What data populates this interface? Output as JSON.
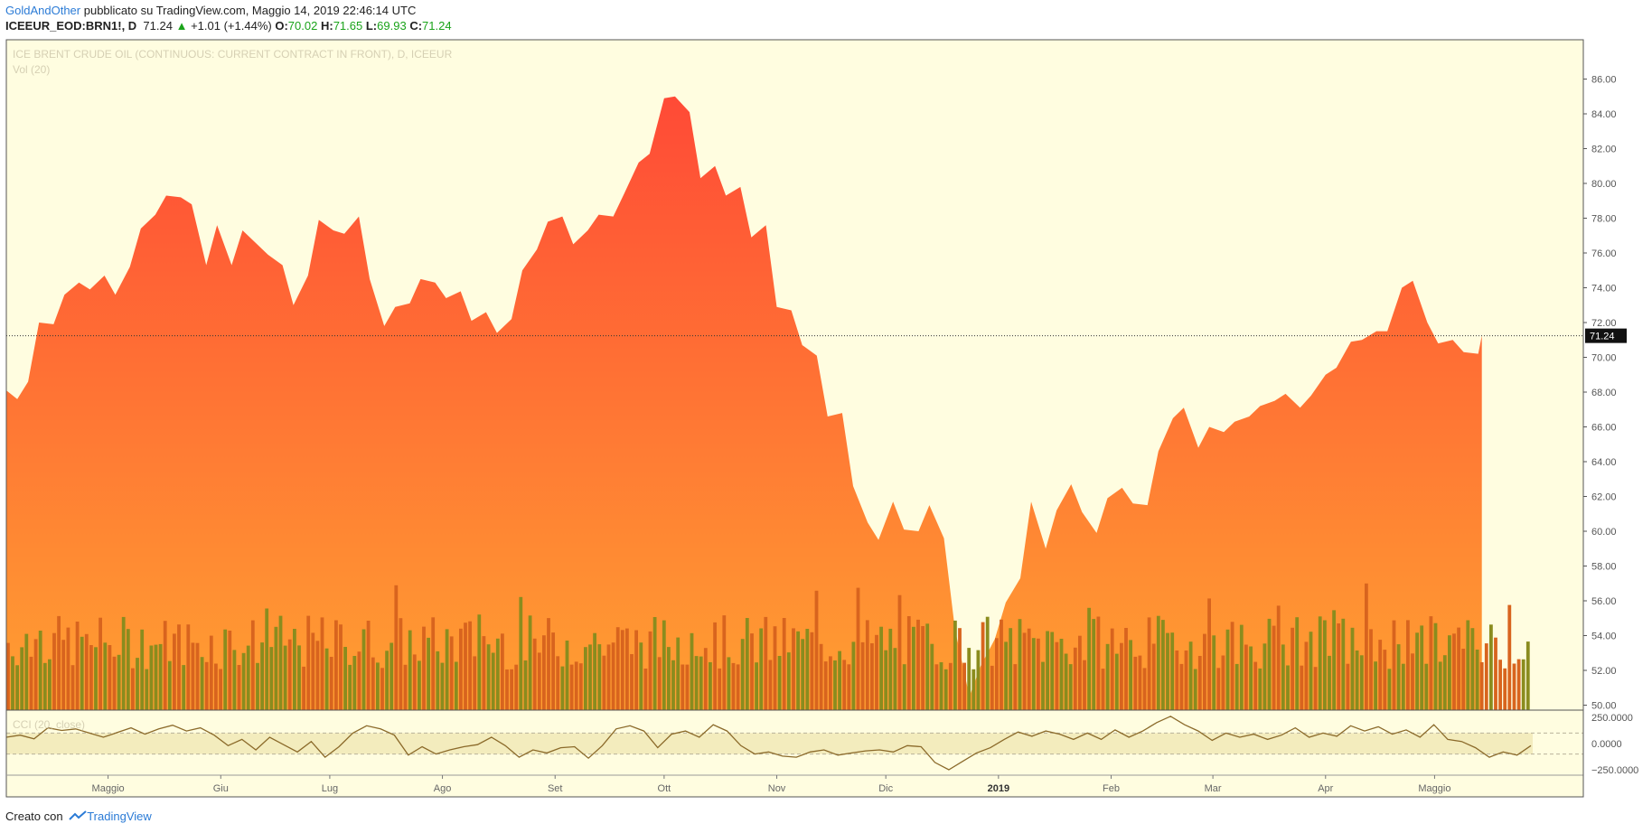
{
  "header": {
    "author": "GoldAndOther",
    "published": "pubblicato su TradingView.com, Maggio 14, 2019 22:46:14 UTC",
    "symbol": "ICEEUR_EOD:BRN1!, D",
    "last": "71.24",
    "change": "+1.01 (+1.44%)",
    "o_label": "O:",
    "o": "70.02",
    "h_label": "H:",
    "h": "71.65",
    "l_label": "L:",
    "l": "69.93",
    "c_label": "C:",
    "c": "71.24",
    "up_arrow": "▲"
  },
  "footer": {
    "created_with": "Creato con",
    "brand": "TradingView"
  },
  "colors": {
    "background": "#fffde0",
    "area_top": "#ff4a36",
    "area_bottom": "#ffa032",
    "vol_up": "#8a8c1e",
    "vol_down": "#d8641e",
    "cci_line": "#8b6a2a",
    "cci_band": "#f3ecbd",
    "last_label_bg": "#111111"
  },
  "chart_data": {
    "type": "area",
    "title": "ICE BRENT CRUDE OIL (CONTINUOUS: CURRENT CONTRACT IN FRONT), D, ICEEUR",
    "indicator_volume": "Vol (20)",
    "indicator_cci": "CCI (20, close)",
    "ylim": [
      48.5,
      87
    ],
    "y_ticks": [
      "86.00",
      "84.00",
      "82.00",
      "80.00",
      "78.00",
      "76.00",
      "74.00",
      "72.00",
      "70.00",
      "68.00",
      "66.00",
      "64.00",
      "62.00",
      "60.00",
      "58.00",
      "56.00",
      "54.00",
      "52.00",
      "50.00"
    ],
    "last_value": "71.24",
    "cci_ticks": [
      "250.0000",
      "0.0000",
      "−250.0000"
    ],
    "x_labels": [
      "Maggio",
      "Giu",
      "Lug",
      "Ago",
      "Set",
      "Ott",
      "Nov",
      "Dic",
      "2019",
      "Feb",
      "Mar",
      "Apr",
      "Maggio"
    ],
    "x_label_dates": [
      "2018-05-01",
      "2018-06-01",
      "2018-07-01",
      "2018-08-01",
      "2018-09-01",
      "2018-10-01",
      "2018-11-01",
      "2018-12-01",
      "2019-01-01",
      "2019-02-01",
      "2019-03-01",
      "2019-04-01",
      "2019-05-01"
    ],
    "x_range": [
      "2018-04-03",
      "2019-05-28"
    ],
    "close_series": [
      [
        "2018-04-03",
        68.1
      ],
      [
        "2018-04-06",
        67.6
      ],
      [
        "2018-04-09",
        68.6
      ],
      [
        "2018-04-12",
        72.0
      ],
      [
        "2018-04-16",
        71.9
      ],
      [
        "2018-04-19",
        73.6
      ],
      [
        "2018-04-23",
        74.3
      ],
      [
        "2018-04-26",
        73.9
      ],
      [
        "2018-04-30",
        74.7
      ],
      [
        "2018-05-03",
        73.6
      ],
      [
        "2018-05-07",
        75.2
      ],
      [
        "2018-05-10",
        77.4
      ],
      [
        "2018-05-14",
        78.2
      ],
      [
        "2018-05-17",
        79.3
      ],
      [
        "2018-05-21",
        79.2
      ],
      [
        "2018-05-24",
        78.8
      ],
      [
        "2018-05-28",
        75.3
      ],
      [
        "2018-05-31",
        77.6
      ],
      [
        "2018-06-04",
        75.3
      ],
      [
        "2018-06-07",
        77.3
      ],
      [
        "2018-06-11",
        76.5
      ],
      [
        "2018-06-14",
        75.9
      ],
      [
        "2018-06-18",
        75.3
      ],
      [
        "2018-06-21",
        73.0
      ],
      [
        "2018-06-25",
        74.7
      ],
      [
        "2018-06-28",
        77.9
      ],
      [
        "2018-07-02",
        77.3
      ],
      [
        "2018-07-05",
        77.1
      ],
      [
        "2018-07-09",
        78.1
      ],
      [
        "2018-07-12",
        74.5
      ],
      [
        "2018-07-16",
        71.8
      ],
      [
        "2018-07-19",
        72.9
      ],
      [
        "2018-07-23",
        73.1
      ],
      [
        "2018-07-26",
        74.5
      ],
      [
        "2018-07-30",
        74.3
      ],
      [
        "2018-08-02",
        73.4
      ],
      [
        "2018-08-06",
        73.8
      ],
      [
        "2018-08-09",
        72.1
      ],
      [
        "2018-08-13",
        72.6
      ],
      [
        "2018-08-16",
        71.4
      ],
      [
        "2018-08-20",
        72.2
      ],
      [
        "2018-08-23",
        75.0
      ],
      [
        "2018-08-27",
        76.2
      ],
      [
        "2018-08-30",
        77.8
      ],
      [
        "2018-09-03",
        78.1
      ],
      [
        "2018-09-06",
        76.5
      ],
      [
        "2018-09-10",
        77.3
      ],
      [
        "2018-09-13",
        78.2
      ],
      [
        "2018-09-17",
        78.1
      ],
      [
        "2018-09-20",
        79.4
      ],
      [
        "2018-09-24",
        81.2
      ],
      [
        "2018-09-27",
        81.7
      ],
      [
        "2018-10-01",
        84.9
      ],
      [
        "2018-10-04",
        85.0
      ],
      [
        "2018-10-08",
        84.1
      ],
      [
        "2018-10-11",
        80.3
      ],
      [
        "2018-10-15",
        81.0
      ],
      [
        "2018-10-18",
        79.3
      ],
      [
        "2018-10-22",
        79.8
      ],
      [
        "2018-10-25",
        76.9
      ],
      [
        "2018-10-29",
        77.6
      ],
      [
        "2018-11-01",
        72.9
      ],
      [
        "2018-11-05",
        72.7
      ],
      [
        "2018-11-08",
        70.7
      ],
      [
        "2018-11-12",
        70.1
      ],
      [
        "2018-11-15",
        66.6
      ],
      [
        "2018-11-19",
        66.8
      ],
      [
        "2018-11-22",
        62.6
      ],
      [
        "2018-11-26",
        60.5
      ],
      [
        "2018-11-29",
        59.5
      ],
      [
        "2018-12-03",
        61.7
      ],
      [
        "2018-12-06",
        60.1
      ],
      [
        "2018-12-10",
        60.0
      ],
      [
        "2018-12-13",
        61.5
      ],
      [
        "2018-12-17",
        59.6
      ],
      [
        "2018-12-20",
        54.4
      ],
      [
        "2018-12-24",
        50.5
      ],
      [
        "2018-12-27",
        52.2
      ],
      [
        "2018-12-31",
        53.8
      ],
      [
        "2019-01-03",
        55.9
      ],
      [
        "2019-01-07",
        57.3
      ],
      [
        "2019-01-10",
        61.7
      ],
      [
        "2019-01-14",
        59.0
      ],
      [
        "2019-01-17",
        61.2
      ],
      [
        "2019-01-21",
        62.7
      ],
      [
        "2019-01-24",
        61.1
      ],
      [
        "2019-01-28",
        59.9
      ],
      [
        "2019-01-31",
        61.9
      ],
      [
        "2019-02-04",
        62.5
      ],
      [
        "2019-02-07",
        61.6
      ],
      [
        "2019-02-11",
        61.5
      ],
      [
        "2019-02-14",
        64.6
      ],
      [
        "2019-02-18",
        66.5
      ],
      [
        "2019-02-21",
        67.1
      ],
      [
        "2019-02-25",
        64.8
      ],
      [
        "2019-02-28",
        66.0
      ],
      [
        "2019-03-04",
        65.7
      ],
      [
        "2019-03-07",
        66.3
      ],
      [
        "2019-03-11",
        66.6
      ],
      [
        "2019-03-14",
        67.2
      ],
      [
        "2019-03-18",
        67.5
      ],
      [
        "2019-03-21",
        67.9
      ],
      [
        "2019-03-25",
        67.1
      ],
      [
        "2019-03-28",
        67.8
      ],
      [
        "2019-04-01",
        69.0
      ],
      [
        "2019-04-04",
        69.4
      ],
      [
        "2019-04-08",
        70.9
      ],
      [
        "2019-04-11",
        71.0
      ],
      [
        "2019-04-15",
        71.5
      ],
      [
        "2019-04-18",
        71.5
      ],
      [
        "2019-04-22",
        74.0
      ],
      [
        "2019-04-25",
        74.4
      ],
      [
        "2019-04-29",
        72.0
      ],
      [
        "2019-05-02",
        70.8
      ],
      [
        "2019-05-06",
        71.0
      ],
      [
        "2019-05-09",
        70.3
      ],
      [
        "2019-05-13",
        70.2
      ],
      [
        "2019-05-14",
        71.24
      ]
    ],
    "cci_series": [
      [
        0,
        60
      ],
      [
        4,
        80
      ],
      [
        8,
        45
      ],
      [
        12,
        150
      ],
      [
        16,
        125
      ],
      [
        20,
        140
      ],
      [
        24,
        100
      ],
      [
        28,
        60
      ],
      [
        32,
        105
      ],
      [
        36,
        150
      ],
      [
        40,
        90
      ],
      [
        44,
        140
      ],
      [
        48,
        175
      ],
      [
        52,
        120
      ],
      [
        56,
        150
      ],
      [
        60,
        80
      ],
      [
        64,
        -20
      ],
      [
        68,
        40
      ],
      [
        72,
        -60
      ],
      [
        76,
        60
      ],
      [
        80,
        -10
      ],
      [
        84,
        -80
      ],
      [
        88,
        20
      ],
      [
        92,
        -130
      ],
      [
        96,
        -30
      ],
      [
        100,
        100
      ],
      [
        104,
        170
      ],
      [
        108,
        140
      ],
      [
        112,
        80
      ],
      [
        116,
        -110
      ],
      [
        120,
        -30
      ],
      [
        124,
        -100
      ],
      [
        128,
        -60
      ],
      [
        132,
        -30
      ],
      [
        136,
        -10
      ],
      [
        140,
        60
      ],
      [
        144,
        -20
      ],
      [
        148,
        -130
      ],
      [
        152,
        -60
      ],
      [
        156,
        -90
      ],
      [
        160,
        -40
      ],
      [
        164,
        -30
      ],
      [
        168,
        -140
      ],
      [
        172,
        -20
      ],
      [
        176,
        140
      ],
      [
        180,
        170
      ],
      [
        184,
        120
      ],
      [
        188,
        -40
      ],
      [
        192,
        90
      ],
      [
        196,
        120
      ],
      [
        200,
        60
      ],
      [
        204,
        180
      ],
      [
        208,
        120
      ],
      [
        212,
        -20
      ],
      [
        216,
        -100
      ],
      [
        220,
        -80
      ],
      [
        224,
        -120
      ],
      [
        228,
        -130
      ],
      [
        232,
        -80
      ],
      [
        236,
        -60
      ],
      [
        240,
        -110
      ],
      [
        244,
        -90
      ],
      [
        248,
        -70
      ],
      [
        252,
        -60
      ],
      [
        256,
        -80
      ],
      [
        260,
        -20
      ],
      [
        264,
        -30
      ],
      [
        268,
        -180
      ],
      [
        272,
        -250
      ],
      [
        276,
        -170
      ],
      [
        280,
        -90
      ],
      [
        284,
        -40
      ],
      [
        288,
        40
      ],
      [
        292,
        110
      ],
      [
        296,
        70
      ],
      [
        300,
        120
      ],
      [
        304,
        90
      ],
      [
        308,
        40
      ],
      [
        312,
        100
      ],
      [
        316,
        40
      ],
      [
        320,
        130
      ],
      [
        324,
        60
      ],
      [
        328,
        120
      ],
      [
        332,
        200
      ],
      [
        336,
        260
      ],
      [
        340,
        180
      ],
      [
        344,
        120
      ],
      [
        348,
        30
      ],
      [
        352,
        100
      ],
      [
        356,
        60
      ],
      [
        360,
        90
      ],
      [
        364,
        40
      ],
      [
        368,
        80
      ],
      [
        372,
        150
      ],
      [
        376,
        60
      ],
      [
        380,
        100
      ],
      [
        384,
        70
      ],
      [
        388,
        170
      ],
      [
        392,
        120
      ],
      [
        396,
        160
      ],
      [
        400,
        90
      ],
      [
        404,
        130
      ],
      [
        408,
        60
      ],
      [
        412,
        180
      ],
      [
        416,
        40
      ],
      [
        420,
        20
      ],
      [
        424,
        -40
      ],
      [
        428,
        -130
      ],
      [
        432,
        -80
      ],
      [
        436,
        -110
      ],
      [
        440,
        -20
      ]
    ],
    "volume_note": "volume bars shown beneath price (about 330 daily bars)"
  }
}
